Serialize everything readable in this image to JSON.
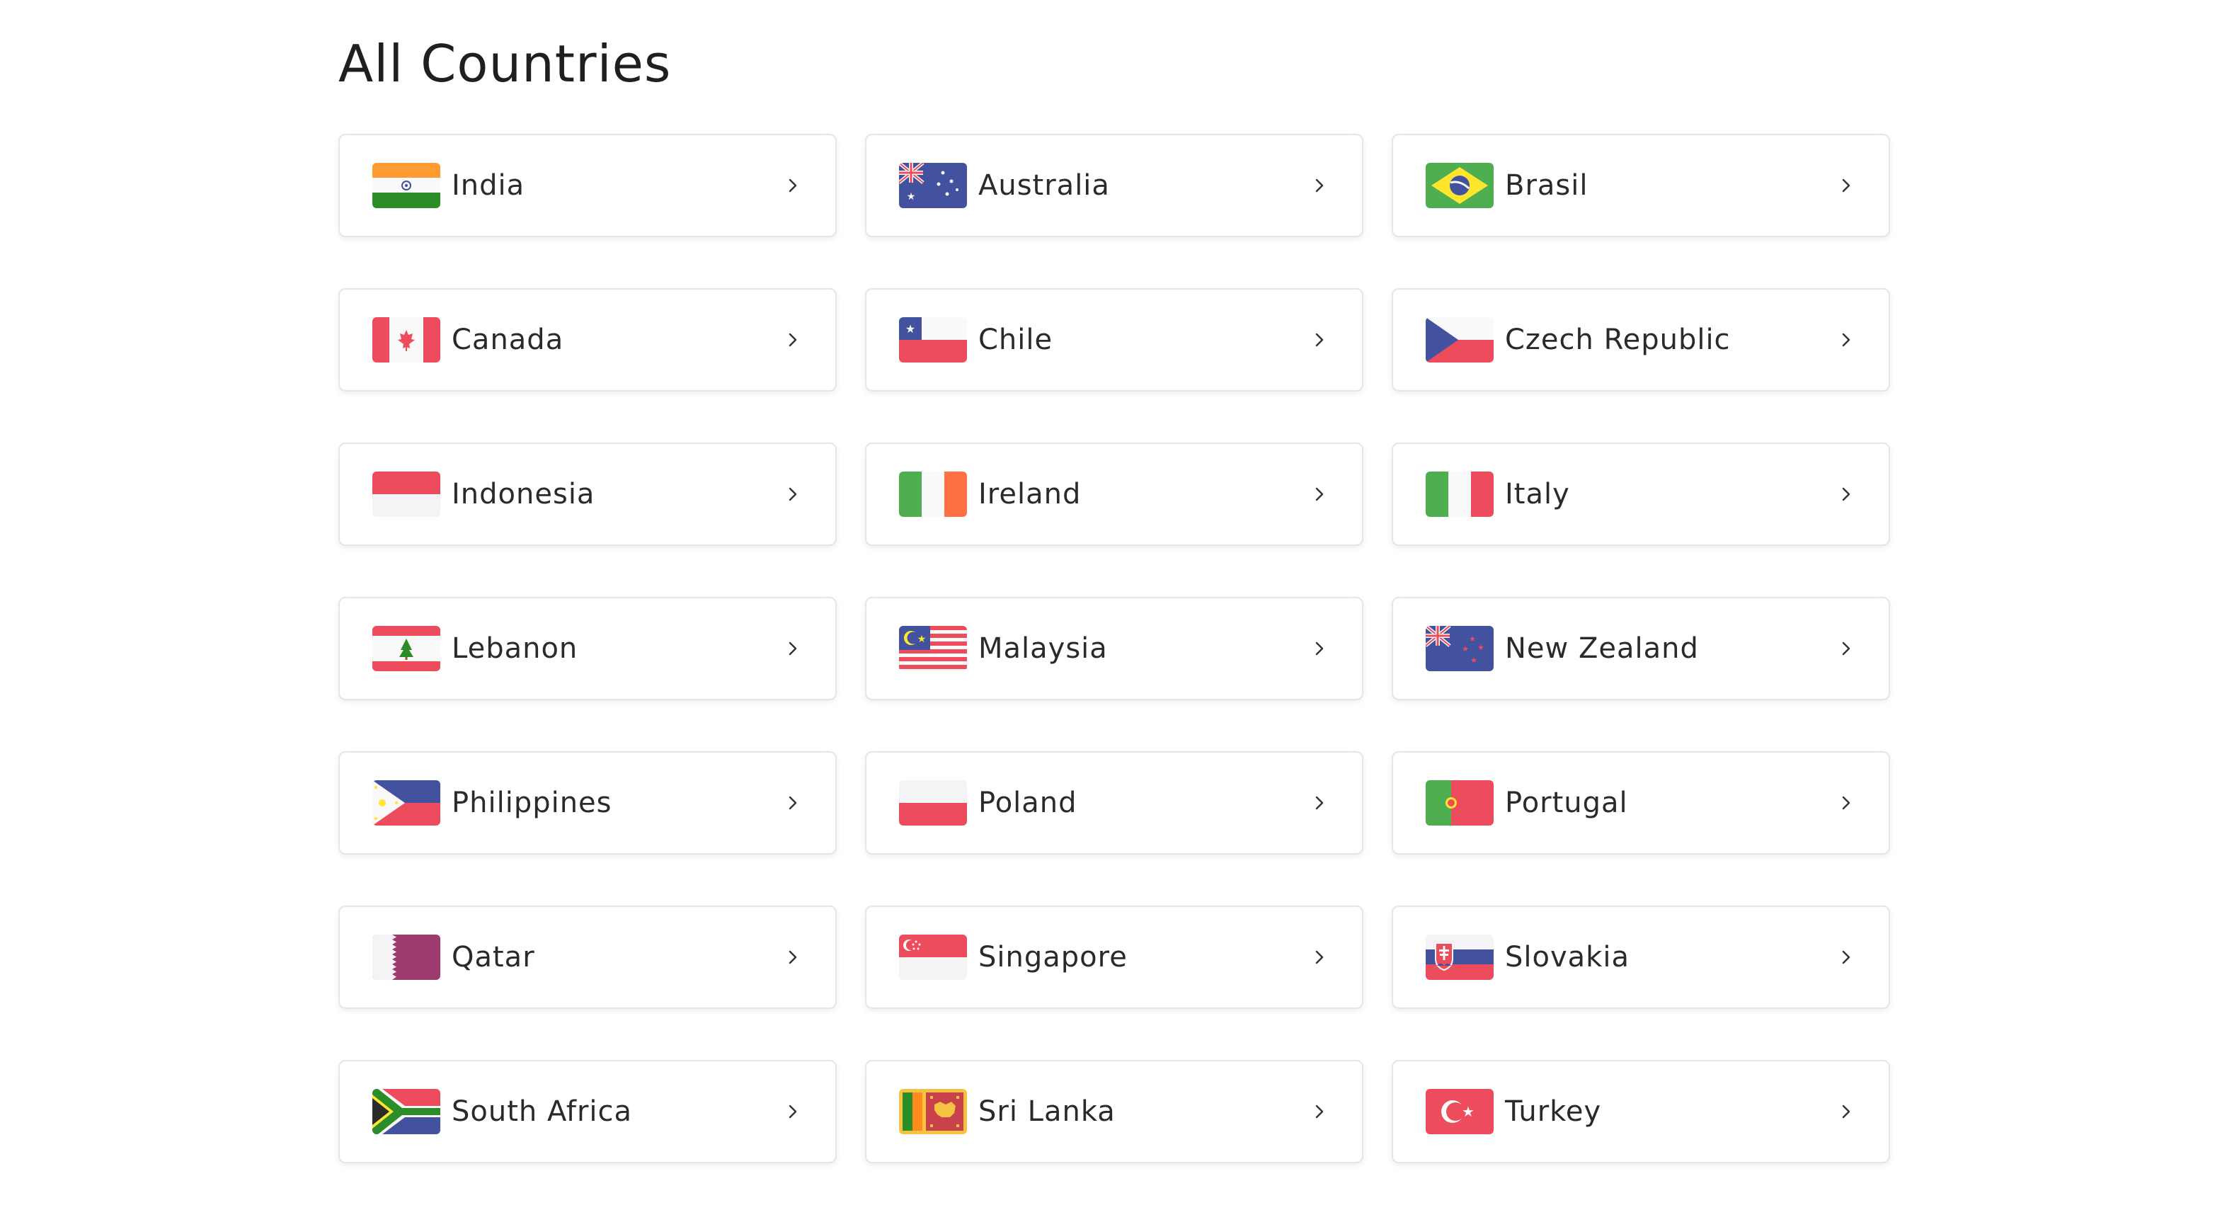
{
  "page": {
    "title": "All Countries"
  },
  "countries": [
    {
      "label": "India",
      "flag": "flag-india-icon"
    },
    {
      "label": "Australia",
      "flag": "flag-australia-icon"
    },
    {
      "label": "Brasil",
      "flag": "flag-brasil-icon"
    },
    {
      "label": "Canada",
      "flag": "flag-canada-icon"
    },
    {
      "label": "Chile",
      "flag": "flag-chile-icon"
    },
    {
      "label": "Czech Republic",
      "flag": "flag-czech-republic-icon"
    },
    {
      "label": "Indonesia",
      "flag": "flag-indonesia-icon"
    },
    {
      "label": "Ireland",
      "flag": "flag-ireland-icon"
    },
    {
      "label": "Italy",
      "flag": "flag-italy-icon"
    },
    {
      "label": "Lebanon",
      "flag": "flag-lebanon-icon"
    },
    {
      "label": "Malaysia",
      "flag": "flag-malaysia-icon"
    },
    {
      "label": "New Zealand",
      "flag": "flag-new-zealand-icon"
    },
    {
      "label": "Philippines",
      "flag": "flag-philippines-icon"
    },
    {
      "label": "Poland",
      "flag": "flag-poland-icon"
    },
    {
      "label": "Portugal",
      "flag": "flag-portugal-icon"
    },
    {
      "label": "Qatar",
      "flag": "flag-qatar-icon"
    },
    {
      "label": "Singapore",
      "flag": "flag-singapore-icon"
    },
    {
      "label": "Slovakia",
      "flag": "flag-slovakia-icon"
    },
    {
      "label": "South Africa",
      "flag": "flag-south-africa-icon"
    },
    {
      "label": "Sri Lanka",
      "flag": "flag-sri-lanka-icon"
    },
    {
      "label": "Turkey",
      "flag": "flag-turkey-icon"
    }
  ],
  "icons": {
    "card_action": "chevron-right-icon"
  },
  "colors": {
    "card_border": "#e6e6e6",
    "text": "#2a2a2a",
    "flag_red": "#ED4C5C",
    "flag_blue": "#42529E",
    "flag_white": "#F9F9F9",
    "flag_green": "#2A8D27",
    "flag_saffron": "#FF9A31"
  }
}
